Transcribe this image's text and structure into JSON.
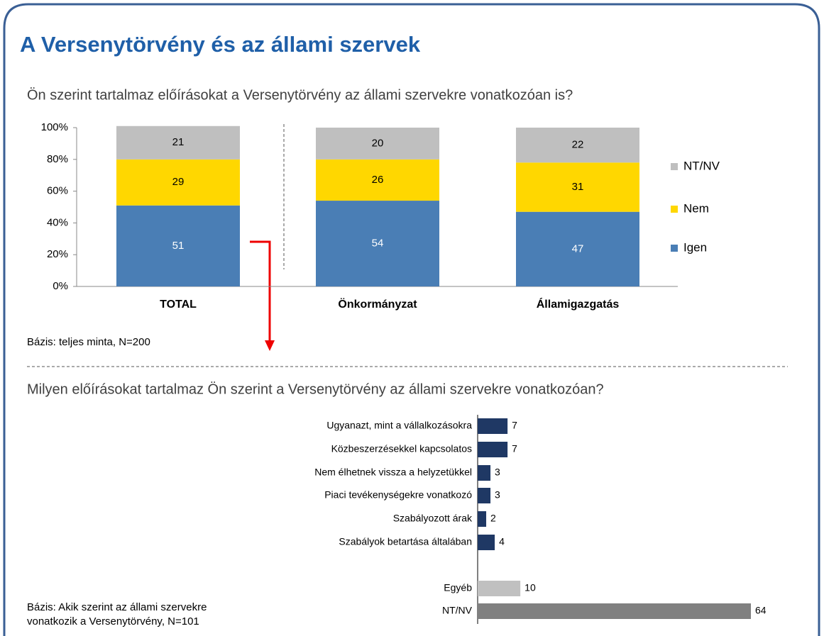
{
  "title": "A Versenytörvény és az állami szervek",
  "chart_data": [
    {
      "type": "stacked_bar",
      "title": "Ön szerint tartalmaz előírásokat a Versenytörvény az állami szervekre vonatkozóan is?",
      "categories": [
        "TOTAL",
        "Önkormányzat",
        "Államigazgatás"
      ],
      "series": [
        {
          "name": "Igen",
          "color": "#4a7eb5",
          "values": [
            51,
            54,
            47
          ]
        },
        {
          "name": "Nem",
          "color": "#ffd700",
          "values": [
            29,
            26,
            31
          ]
        },
        {
          "name": "NT/NV",
          "color": "#bfbfbf",
          "values": [
            21,
            20,
            22
          ]
        }
      ],
      "ylim": [
        0,
        100
      ],
      "yticks": [
        {
          "value": 0,
          "label": "0%"
        },
        {
          "value": 20,
          "label": "20%"
        },
        {
          "value": 40,
          "label": "40%"
        },
        {
          "value": 60,
          "label": "60%"
        },
        {
          "value": 80,
          "label": "80%"
        },
        {
          "value": 100,
          "label": "100%"
        }
      ],
      "note": [
        "Bázis: teljes minta, N=200"
      ]
    },
    {
      "type": "hbar",
      "title": "Milyen előírásokat tartalmaz Ön szerint a Versenytörvény az állami szervekre vonatkozóan?",
      "categories": [
        "Ugyanazt, mint a vállalkozásokra",
        "Közbeszerzésekkel kapcsolatos",
        "Nem élhetnek vissza a helyzetükkel",
        "Piaci tevékenységekre vonatkozó",
        "Szabályozott árak",
        "Szabályok betartása általában",
        "Egyéb",
        "NT/NV"
      ],
      "values": [
        7,
        7,
        3,
        3,
        2,
        4,
        10,
        64
      ],
      "colors": [
        "#1f3864",
        "#1f3864",
        "#1f3864",
        "#1f3864",
        "#1f3864",
        "#1f3864",
        "#c0c0c0",
        "#808080"
      ],
      "note": [
        "Bázis: Akik szerint az állami szervekre",
        "vonatkozik a Versenytörvény, N=101"
      ]
    }
  ]
}
